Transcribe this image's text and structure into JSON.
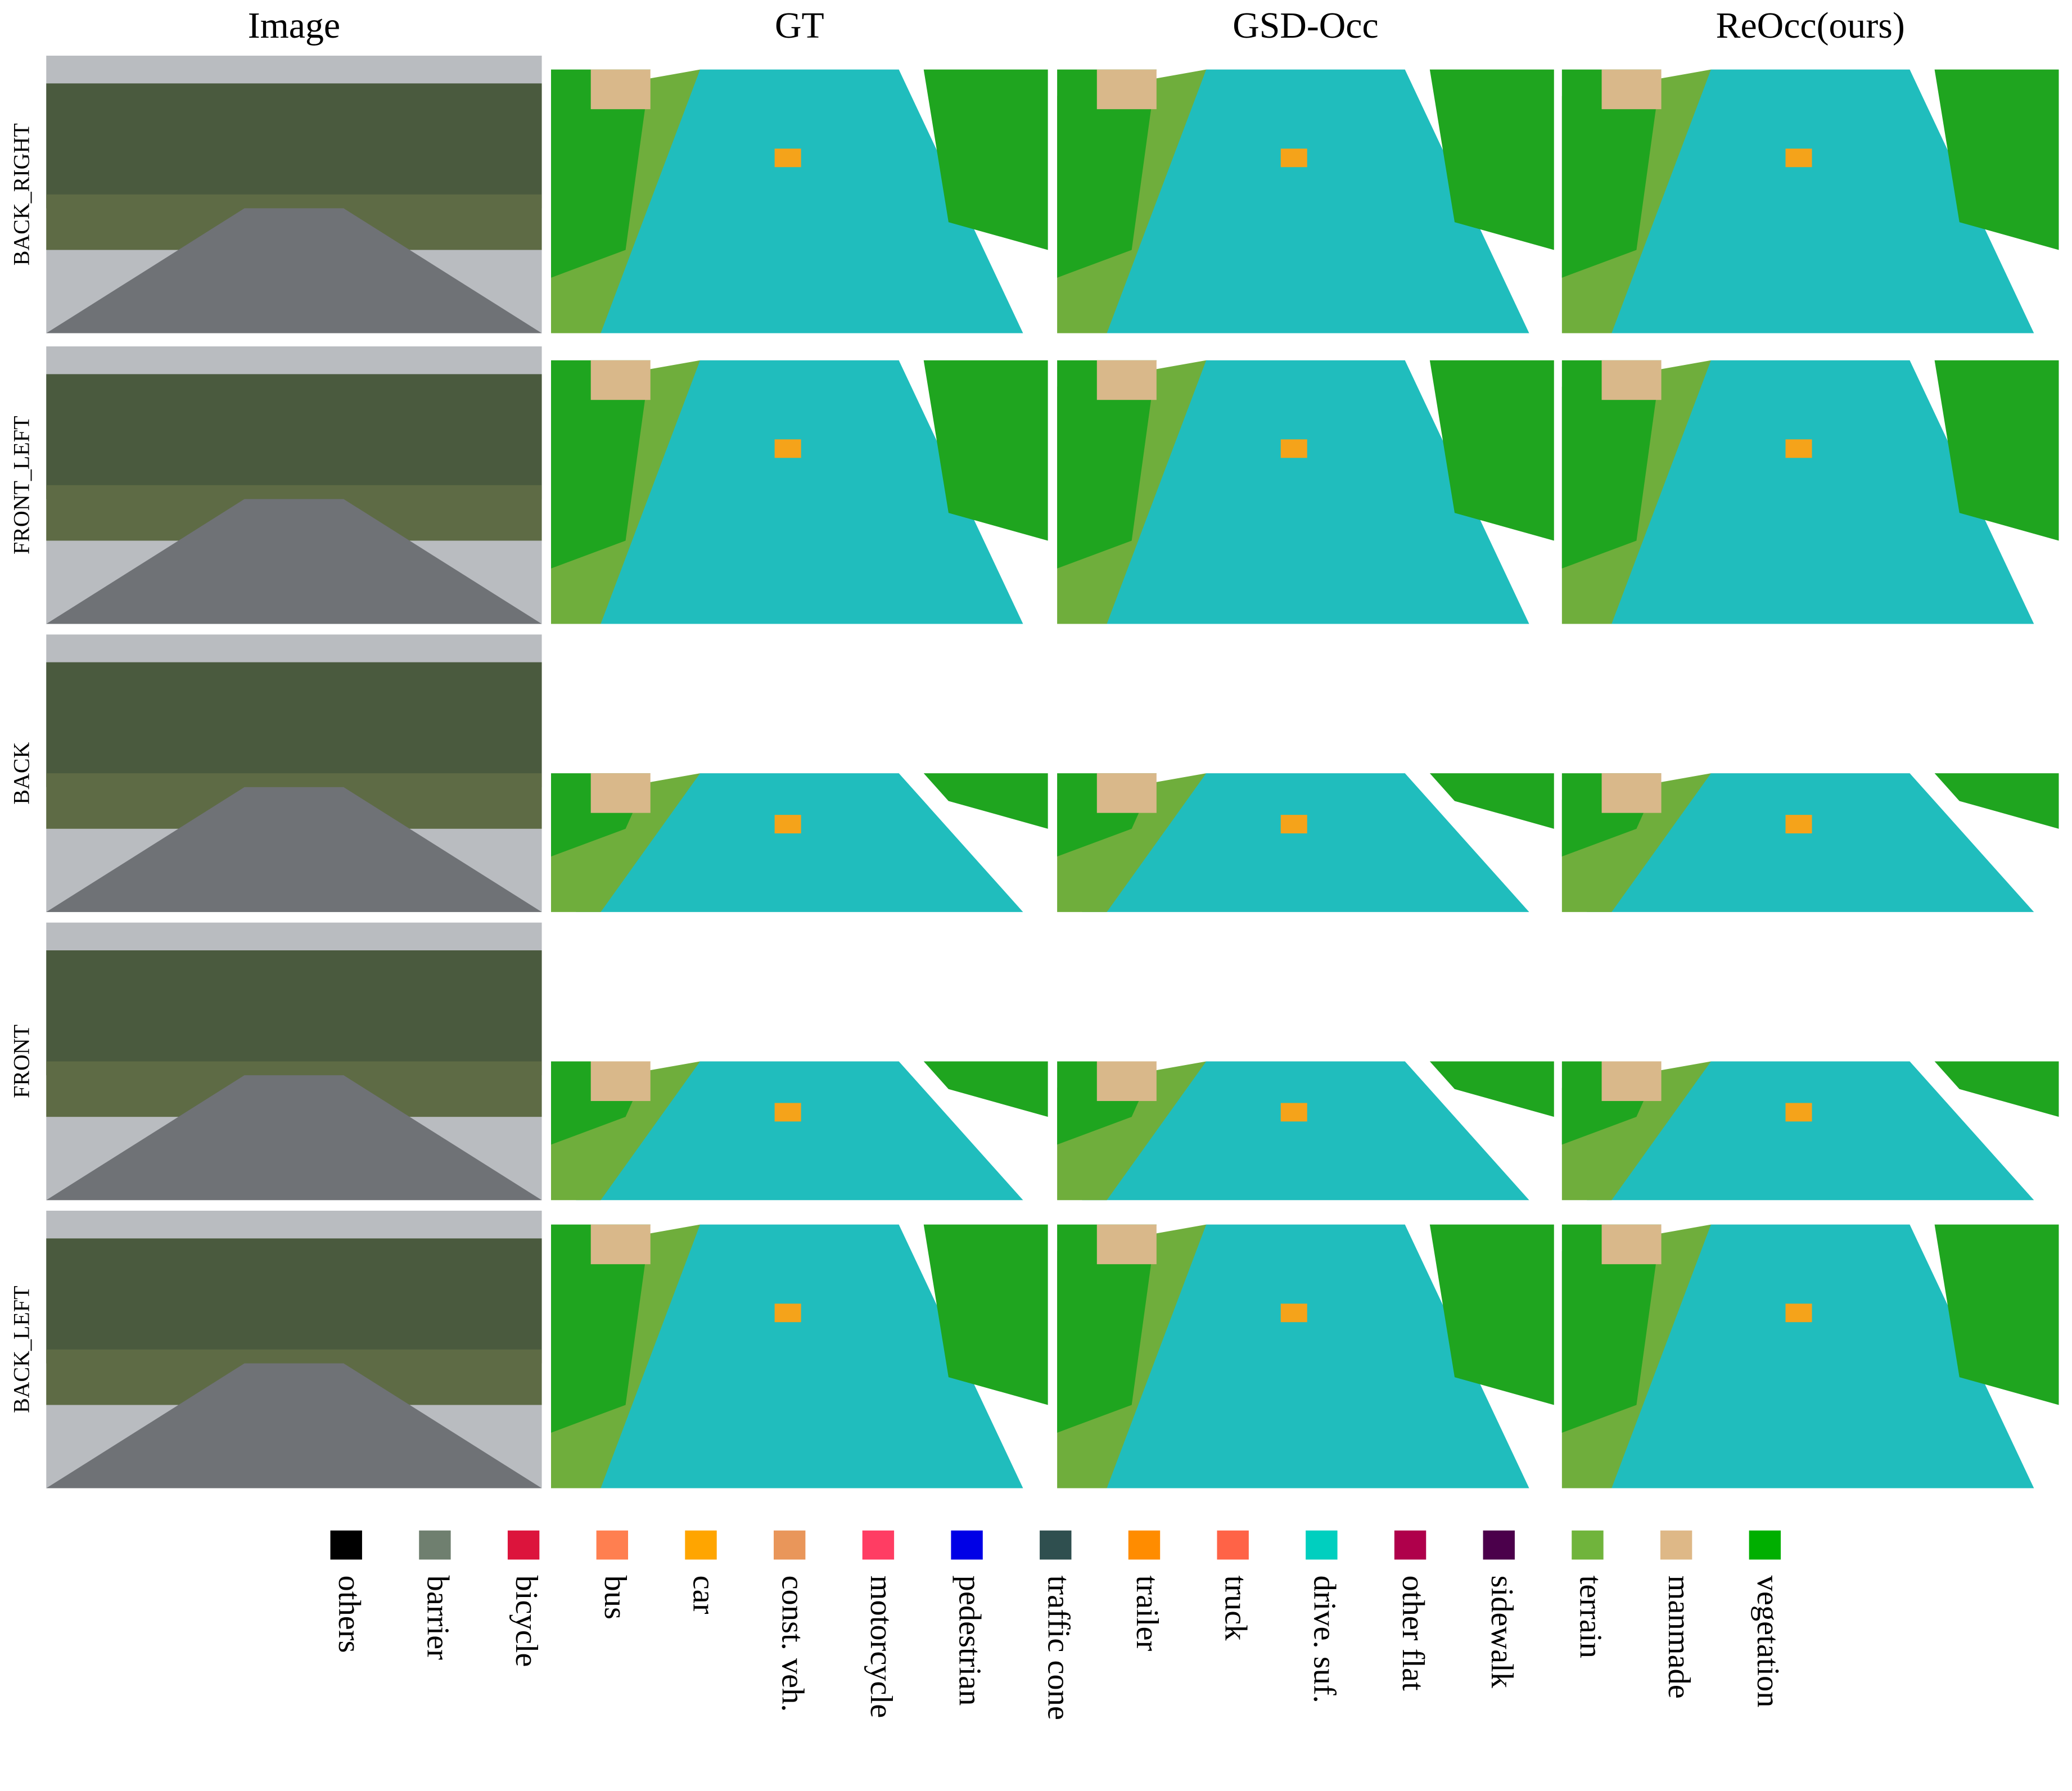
{
  "columns": [
    "Image",
    "GT",
    "GSD-Occ",
    "ReOcc(ours)"
  ],
  "rows": [
    "BACK_RIGHT",
    "FRONT_LEFT",
    "BACK",
    "FRONT",
    "BACK_LEFT"
  ],
  "legend": [
    {
      "label": "others",
      "color": "#000000"
    },
    {
      "label": "barrier",
      "color": "#6f7f6f"
    },
    {
      "label": "bicycle",
      "color": "#dc143c"
    },
    {
      "label": "bus",
      "color": "#ff7f50"
    },
    {
      "label": "car",
      "color": "#ffa500"
    },
    {
      "label": "const. veh.",
      "color": "#e9965a"
    },
    {
      "label": "motorcycle",
      "color": "#ff3d63"
    },
    {
      "label": "pedestrian",
      "color": "#0000e6"
    },
    {
      "label": "traffic cone",
      "color": "#2f4f4f"
    },
    {
      "label": "trailer",
      "color": "#ff8c00"
    },
    {
      "label": "truck",
      "color": "#ff6347"
    },
    {
      "label": "drive. suf.",
      "color": "#00cfbf"
    },
    {
      "label": "other flat",
      "color": "#af004b"
    },
    {
      "label": "sidewalk",
      "color": "#4b004b"
    },
    {
      "label": "terrain",
      "color": "#70b43c"
    },
    {
      "label": "manmade",
      "color": "#deb887"
    },
    {
      "label": "vegetation",
      "color": "#00af00"
    }
  ]
}
